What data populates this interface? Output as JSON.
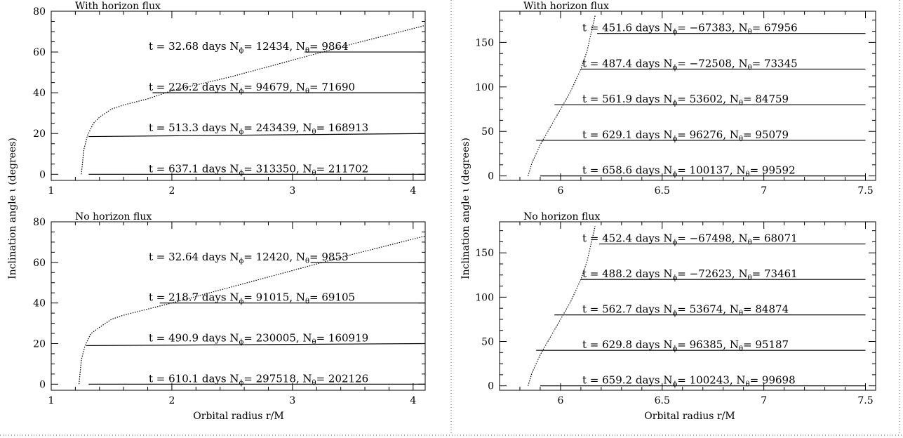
{
  "figure": {
    "xlabel": "Orbital radius r/M",
    "ylabel": "Inclination angle ι  (degrees)"
  },
  "chart_data": [
    {
      "type": "line",
      "title": "With horizon flux",
      "xlim": [
        1,
        4.1
      ],
      "ylim": [
        -3,
        80
      ],
      "xticks": [
        1,
        2,
        3,
        4
      ],
      "yticks": [
        0,
        20,
        40,
        60,
        80
      ],
      "curve_x": [
        1.25,
        1.27,
        1.3,
        1.35,
        1.4,
        1.5,
        1.6,
        1.8,
        2.0,
        2.5,
        3.0,
        3.5,
        4.1
      ],
      "curve_y": [
        0,
        12,
        19,
        25,
        28,
        32,
        34,
        37,
        41,
        48,
        56,
        64,
        73
      ],
      "tracks": [
        {
          "x": [
            1.31,
            4.1
          ],
          "y": [
            0,
            0
          ]
        },
        {
          "x": [
            1.31,
            4.1
          ],
          "y": [
            18.5,
            20.0
          ]
        },
        {
          "x": [
            1.84,
            4.1
          ],
          "y": [
            40,
            40
          ]
        },
        {
          "x": [
            3.1,
            4.1
          ],
          "y": [
            60,
            60
          ]
        }
      ],
      "annotations": [
        {
          "text": "t = 32.68 days  N",
          "s1": "ϕ",
          "t2": "= 12434, N",
          "s2": "θ",
          "t3": "= 9864",
          "y": 60
        },
        {
          "text": "t = 226.2 days  N",
          "s1": "ϕ",
          "t2": "= 94679, N",
          "s2": "θ",
          "t3": "= 71690",
          "y": 40
        },
        {
          "text": "t = 513.3 days  N",
          "s1": "ϕ",
          "t2": "= 243439, N",
          "s2": "θ",
          "t3": "= 168913",
          "y": 20
        },
        {
          "text": "t = 637.1 days  N",
          "s1": "ϕ",
          "t2": "= 313350, N",
          "s2": "θ",
          "t3": "= 211702",
          "y": 0
        }
      ]
    },
    {
      "type": "line",
      "title": "With horizon flux",
      "xlim": [
        5.7,
        7.55
      ],
      "ylim": [
        -5,
        185
      ],
      "xticks": [
        6,
        6.5,
        7,
        7.5
      ],
      "yticks": [
        0,
        50,
        100,
        150
      ],
      "curve_x": [
        5.84,
        5.86,
        5.9,
        5.95,
        6.0,
        6.05,
        6.1,
        6.13,
        6.15,
        6.17
      ],
      "curve_y": [
        0,
        15,
        35,
        55,
        75,
        95,
        120,
        140,
        160,
        180
      ],
      "tracks": [
        {
          "x": [
            5.9,
            7.5
          ],
          "y": [
            0,
            0
          ]
        },
        {
          "x": [
            5.88,
            7.5
          ],
          "y": [
            40,
            40
          ]
        },
        {
          "x": [
            5.97,
            7.5
          ],
          "y": [
            80,
            80
          ]
        },
        {
          "x": [
            6.1,
            7.5
          ],
          "y": [
            120,
            120
          ]
        },
        {
          "x": [
            6.18,
            7.5
          ],
          "y": [
            160,
            160
          ]
        }
      ],
      "annotations": [
        {
          "text": "t = 451.6 days    N",
          "s1": "ϕ",
          "t2": "= −67383, N",
          "s2": "θ",
          "t3": "= 67956",
          "y": 160
        },
        {
          "text": "t = 487.4 days    N",
          "s1": "ϕ",
          "t2": "= −72508, N",
          "s2": "θ",
          "t3": "= 73345",
          "y": 120
        },
        {
          "text": "t = 561.9 days    N",
          "s1": "ϕ",
          "t2": "= 53602, N",
          "s2": "θ",
          "t3": "= 84759",
          "y": 80
        },
        {
          "text": "t = 629.1 days    N",
          "s1": "ϕ",
          "t2": "= 96276, N",
          "s2": "θ",
          "t3": "= 95079",
          "y": 40
        },
        {
          "text": "t = 658.6 days    N",
          "s1": "ϕ",
          "t2": "= 100137, N",
          "s2": "θ",
          "t3": "= 99592",
          "y": 0
        }
      ]
    },
    {
      "type": "line",
      "title": "No horizon flux",
      "xlim": [
        1,
        4.1
      ],
      "ylim": [
        -3,
        80
      ],
      "xticks": [
        1,
        2,
        3,
        4
      ],
      "yticks": [
        0,
        20,
        40,
        60,
        80
      ],
      "curve_x": [
        1.23,
        1.25,
        1.28,
        1.33,
        1.4,
        1.5,
        1.6,
        1.8,
        2.0,
        2.5,
        3.0,
        3.5,
        4.1
      ],
      "curve_y": [
        0,
        12,
        19,
        25,
        28,
        32,
        34,
        37,
        40,
        48,
        56,
        64,
        73
      ],
      "tracks": [
        {
          "x": [
            1.31,
            4.1
          ],
          "y": [
            0,
            0
          ]
        },
        {
          "x": [
            1.29,
            4.1
          ],
          "y": [
            19.0,
            20.0
          ]
        },
        {
          "x": [
            1.9,
            4.1
          ],
          "y": [
            40,
            40
          ]
        },
        {
          "x": [
            3.15,
            4.1
          ],
          "y": [
            60,
            60
          ]
        }
      ],
      "annotations": [
        {
          "text": "t = 32.64 days  N",
          "s1": "ϕ",
          "t2": "= 12420, N",
          "s2": "θ",
          "t3": "= 9853",
          "y": 60
        },
        {
          "text": "t = 218.7 days  N",
          "s1": "ϕ",
          "t2": "= 91015, N",
          "s2": "θ",
          "t3": "= 69105",
          "y": 40
        },
        {
          "text": "t = 490.9 days  N",
          "s1": "ϕ",
          "t2": "= 230005, N",
          "s2": "θ",
          "t3": "= 160919",
          "y": 20
        },
        {
          "text": "t = 610.1 days  N",
          "s1": "ϕ",
          "t2": "= 297518, N",
          "s2": "θ",
          "t3": "= 202126",
          "y": 0
        }
      ]
    },
    {
      "type": "line",
      "title": "No horizon flux",
      "xlim": [
        5.7,
        7.55
      ],
      "ylim": [
        -5,
        185
      ],
      "xticks": [
        6,
        6.5,
        7,
        7.5
      ],
      "yticks": [
        0,
        50,
        100,
        150
      ],
      "curve_x": [
        5.84,
        5.86,
        5.9,
        5.95,
        6.0,
        6.05,
        6.1,
        6.13,
        6.15,
        6.17
      ],
      "curve_y": [
        0,
        15,
        35,
        55,
        75,
        95,
        120,
        140,
        160,
        180
      ],
      "tracks": [
        {
          "x": [
            5.9,
            7.5
          ],
          "y": [
            0,
            0
          ]
        },
        {
          "x": [
            5.88,
            7.5
          ],
          "y": [
            40,
            40
          ]
        },
        {
          "x": [
            5.97,
            7.5
          ],
          "y": [
            80,
            80
          ]
        },
        {
          "x": [
            6.1,
            7.5
          ],
          "y": [
            120,
            120
          ]
        },
        {
          "x": [
            6.19,
            7.5
          ],
          "y": [
            160,
            160
          ]
        }
      ],
      "annotations": [
        {
          "text": "t = 452.4 days    N",
          "s1": "ϕ",
          "t2": "= −67498, N",
          "s2": "θ",
          "t3": "= 68071",
          "y": 160
        },
        {
          "text": "t = 488.2 days    N",
          "s1": "ϕ",
          "t2": "= −72623, N",
          "s2": "θ",
          "t3": "= 73461",
          "y": 120
        },
        {
          "text": "t = 562.7 days    N",
          "s1": "ϕ",
          "t2": "= 53674, N",
          "s2": "θ",
          "t3": "= 84874",
          "y": 80
        },
        {
          "text": "t = 629.8 days    N",
          "s1": "ϕ",
          "t2": "= 96385, N",
          "s2": "θ",
          "t3": "= 95187",
          "y": 40
        },
        {
          "text": "t = 659.2 days    N",
          "s1": "ϕ",
          "t2": "= 100243, N",
          "s2": "θ",
          "t3": "= 99698",
          "y": 0
        }
      ]
    }
  ]
}
